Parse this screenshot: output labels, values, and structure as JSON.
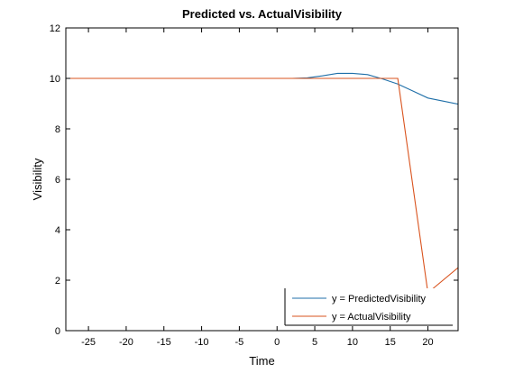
{
  "chart_data": {
    "type": "line",
    "title": "Predicted vs. ActualVisibility",
    "xlabel": "Time",
    "ylabel": "Visibility",
    "xlim": [
      -28,
      24
    ],
    "ylim": [
      0,
      12
    ],
    "xticks": [
      -25,
      -20,
      -15,
      -10,
      -5,
      0,
      5,
      10,
      15,
      20
    ],
    "yticks": [
      0,
      2,
      4,
      6,
      8,
      10,
      12
    ],
    "grid": false,
    "legend_position": "bottom-right",
    "series": [
      {
        "name": "y = PredictedVisibility",
        "color": "#1f6fa8",
        "x": [
          2,
          4,
          6,
          8,
          10,
          12,
          14,
          16,
          18,
          20,
          22,
          24
        ],
        "y": [
          10.0,
          10.02,
          10.1,
          10.2,
          10.2,
          10.15,
          9.98,
          9.78,
          9.5,
          9.22,
          9.1,
          8.98
        ]
      },
      {
        "name": "y = ActualVisibility",
        "color": "#d9531e",
        "x": [
          -28,
          16,
          20,
          24
        ],
        "y": [
          10,
          10,
          1.5,
          2.5
        ]
      }
    ]
  }
}
